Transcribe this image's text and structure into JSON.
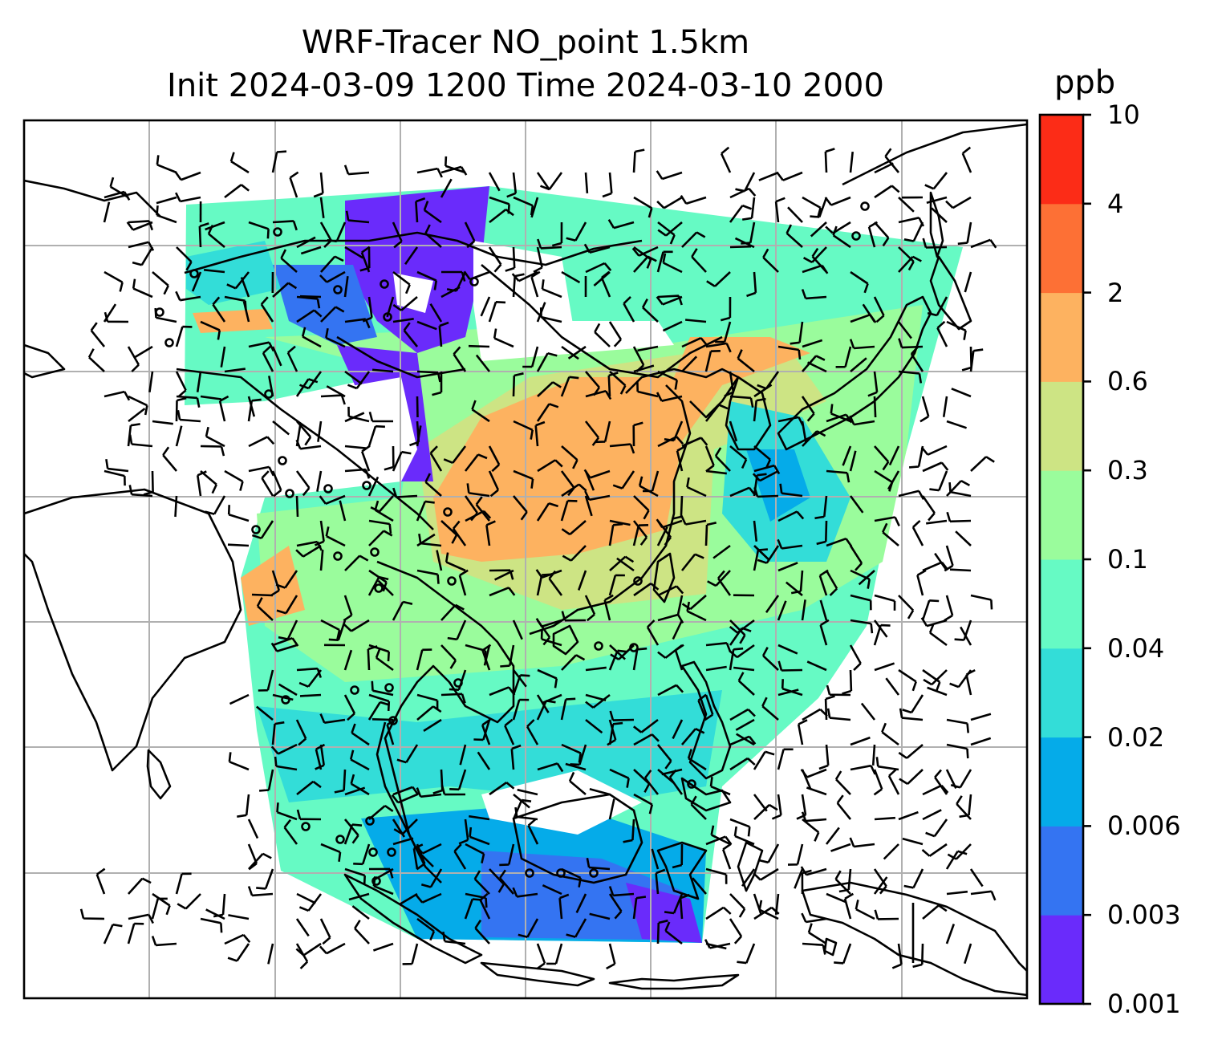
{
  "title": {
    "line1": "WRF-Tracer NO_point 1.5km",
    "line2": "Init 2024-03-09 1200 Time 2024-03-10 2000"
  },
  "colorbar": {
    "unit": "ppb",
    "levels": [
      "0.001",
      "0.003",
      "0.006",
      "0.02",
      "0.04",
      "0.1",
      "0.3",
      "0.6",
      "2",
      "4",
      "10"
    ],
    "colors": [
      "#6a2bfb",
      "#3474f2",
      "#05abe9",
      "#33ddd8",
      "#66fac4",
      "#9afc9c",
      "#cde484",
      "#fdb260",
      "#fd7035",
      "#fc2c17"
    ]
  },
  "map_colors": {
    "gridline": "#b0b0b0",
    "coastline": "#000000",
    "barb": "#000000"
  }
}
